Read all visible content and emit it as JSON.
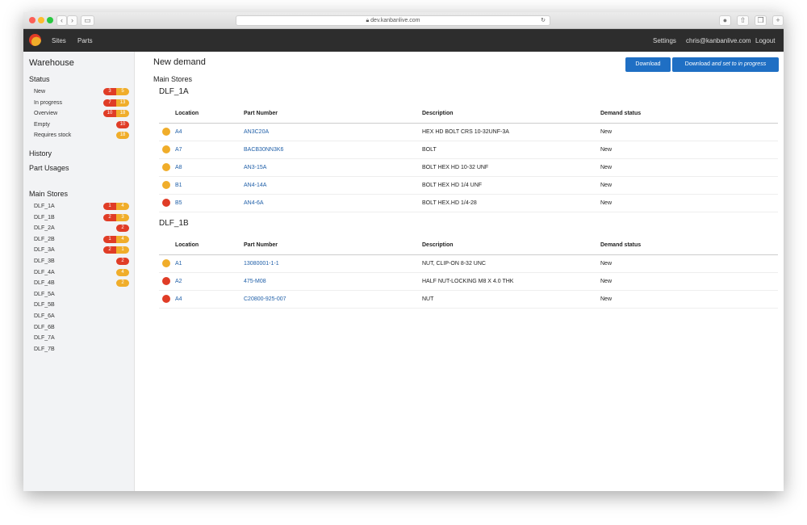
{
  "browser": {
    "url": "dev.kanbanlive.com"
  },
  "nav": {
    "items": [
      "Sites",
      "Parts"
    ],
    "right": [
      "Settings",
      "chris@kanbanlive.com",
      "Logout"
    ]
  },
  "sidebar": {
    "title": "Warehouse",
    "status_title": "Status",
    "status": [
      {
        "label": "New",
        "red": "3",
        "yellow": "5"
      },
      {
        "label": "In progress",
        "red": "7",
        "yellow": "13"
      },
      {
        "label": "Overview",
        "red": "10",
        "yellow": "18"
      },
      {
        "label": "Empty",
        "red": "10",
        "yellow": null
      },
      {
        "label": "Requires stock",
        "red": null,
        "yellow": "18"
      }
    ],
    "history": "History",
    "part_usages": "Part Usages",
    "stores_title": "Main Stores",
    "stores": [
      {
        "label": "DLF_1A",
        "red": "1",
        "yellow": "4"
      },
      {
        "label": "DLF_1B",
        "red": "2",
        "yellow": "3"
      },
      {
        "label": "DLF_2A",
        "red": "2",
        "yellow": null
      },
      {
        "label": "DLF_2B",
        "red": "1",
        "yellow": "4"
      },
      {
        "label": "DLF_3A",
        "red": "2",
        "yellow": "1"
      },
      {
        "label": "DLF_3B",
        "red": "2",
        "yellow": null
      },
      {
        "label": "DLF_4A",
        "red": null,
        "yellow": "4"
      },
      {
        "label": "DLF_4B",
        "red": null,
        "yellow": "2"
      },
      {
        "label": "DLF_5A"
      },
      {
        "label": "DLF_5B"
      },
      {
        "label": "DLF_6A"
      },
      {
        "label": "DLF_6B"
      },
      {
        "label": "DLF_7A"
      },
      {
        "label": "DLF_7B"
      }
    ]
  },
  "main": {
    "title": "New demand",
    "subtitle": "Main Stores",
    "download": "Download",
    "download_set_prefix": "Download ",
    "download_set_em": "and set to in progress",
    "columns": [
      "Location",
      "Part Number",
      "Description",
      "Demand status"
    ],
    "groups": [
      {
        "name": "DLF_1A",
        "rows": [
          {
            "color": "yellow",
            "location": "A4",
            "part": "AN3C20A",
            "description": "HEX HD BOLT CRS 10-32UNF-3A",
            "status": "New"
          },
          {
            "color": "yellow",
            "location": "A7",
            "part": "BACB30NN3K6",
            "description": "BOLT",
            "status": "New"
          },
          {
            "color": "yellow",
            "location": "A8",
            "part": "AN3-15A",
            "description": "BOLT HEX HD 10-32 UNF",
            "status": "New"
          },
          {
            "color": "yellow",
            "location": "B1",
            "part": "AN4-14A",
            "description": "BOLT HEX HD 1/4 UNF",
            "status": "New"
          },
          {
            "color": "red",
            "location": "B5",
            "part": "AN4-6A",
            "description": "BOLT HEX.HD 1/4-28",
            "status": "New"
          }
        ]
      },
      {
        "name": "DLF_1B",
        "rows": [
          {
            "color": "yellow",
            "location": "A1",
            "part": "13080001-1-1",
            "description": "NUT, CLIP-ON 8-32 UNC",
            "status": "New"
          },
          {
            "color": "red",
            "location": "A2",
            "part": "475-M08",
            "description": "HALF NUT-LOCKING M8 X 4.0 THK",
            "status": "New"
          },
          {
            "color": "red",
            "location": "A4",
            "part": "C20800-925-007",
            "description": "NUT",
            "status": "New"
          }
        ]
      }
    ]
  },
  "colors": {
    "red": "#e03c26",
    "yellow": "#f0ad2a",
    "accent": "#1f6fc4",
    "nav": "#2d2d2d"
  }
}
